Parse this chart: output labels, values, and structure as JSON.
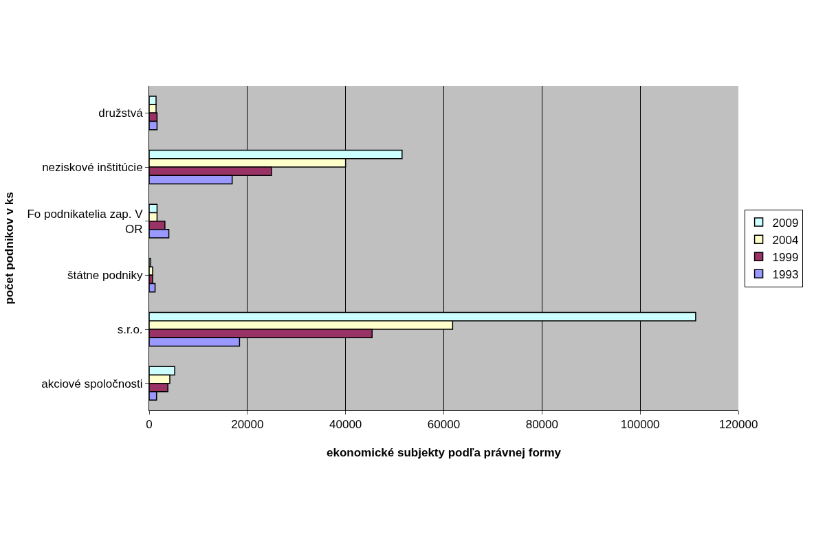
{
  "chart_data": {
    "type": "bar",
    "orientation": "horizontal",
    "xlabel": "ekonomické subjekty podľa právnej formy",
    "ylabel": "počet podnikov v ks",
    "categories": [
      "družstvá",
      "neziskové inštitúcie",
      "Fo podnikatelia zap. V OR",
      "štátne podniky",
      "s.r.o.",
      "akciové spoločnosti"
    ],
    "series": [
      {
        "name": "2009",
        "color": "#ccffff",
        "values": [
          1400,
          51500,
          1600,
          300,
          111300,
          5200
        ]
      },
      {
        "name": "2004",
        "color": "#ffffcc",
        "values": [
          1400,
          40000,
          1600,
          700,
          61800,
          4200
        ]
      },
      {
        "name": "1999",
        "color": "#993366",
        "values": [
          1600,
          24900,
          3200,
          700,
          45400,
          3800
        ]
      },
      {
        "name": "1993",
        "color": "#9999ff",
        "values": [
          1600,
          16900,
          4000,
          1200,
          18400,
          1500
        ]
      }
    ],
    "xlim": [
      0,
      120000
    ],
    "xticks": [
      0,
      20000,
      40000,
      60000,
      80000,
      100000,
      120000
    ],
    "grid": "x",
    "legend": "right"
  }
}
